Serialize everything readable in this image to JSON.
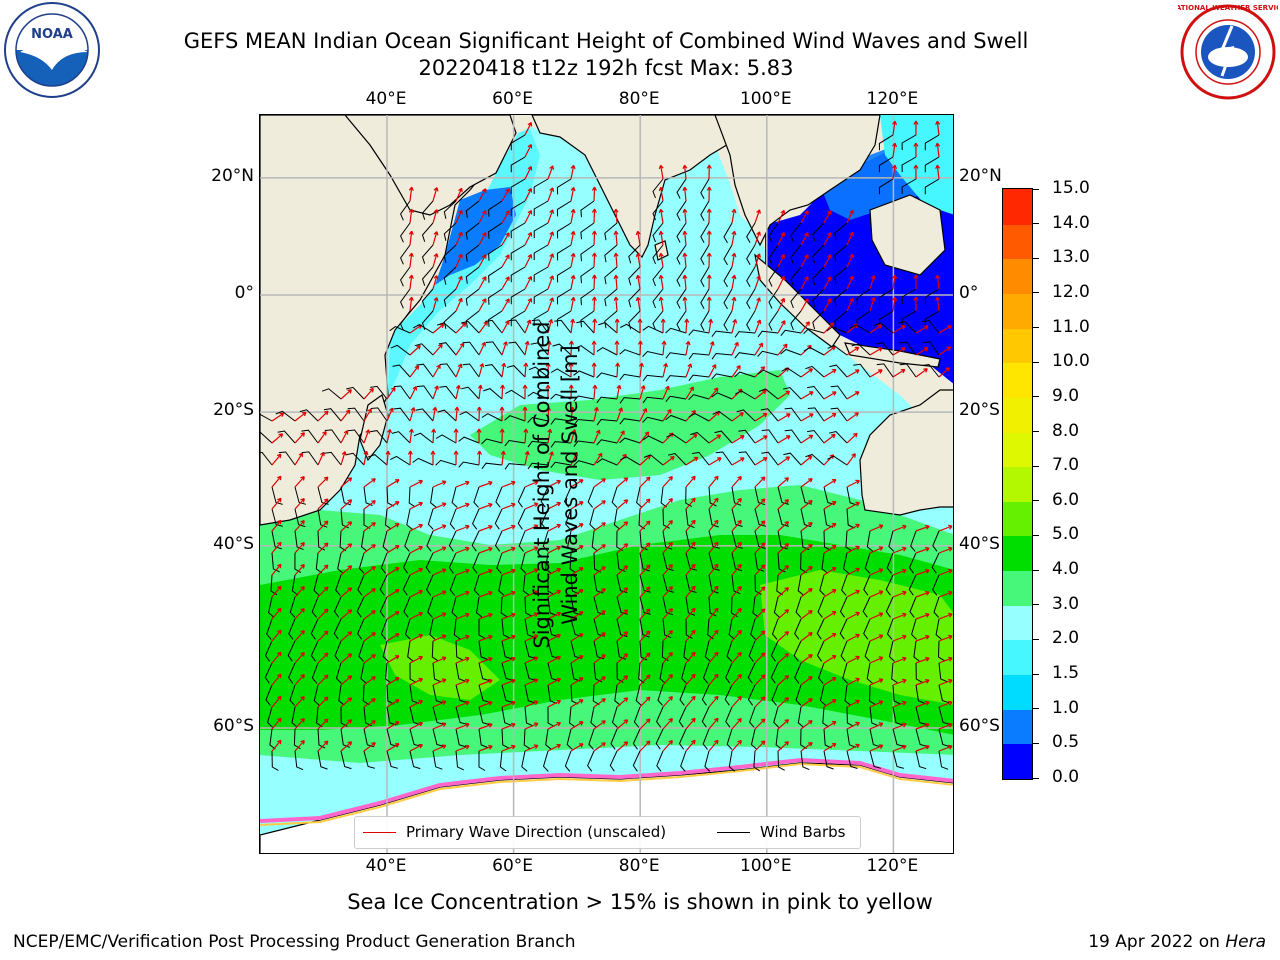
{
  "header": {
    "title_line1": "GEFS MEAN Indian Ocean Significant Height of Combined Wind Waves and Swell",
    "title_line2": "20220418 t12z 192h fcst   Max: 5.83"
  },
  "logos": {
    "noaa_text": "NOAA",
    "nws_ring_text": "NATIONAL WEATHER SERVICE"
  },
  "map": {
    "projection_x_ticks": [
      "40°E",
      "60°E",
      "80°E",
      "100°E",
      "120°E"
    ],
    "lon_values": [
      40,
      60,
      80,
      100,
      120
    ],
    "lat_values": [
      20,
      0,
      -20,
      -40,
      -60
    ],
    "left_lat_ticks": [
      "20°N",
      "0°",
      "20°S",
      "40°S",
      "60°S"
    ],
    "right_lat_ticks": [
      "20°N",
      "0°",
      "20°S",
      "40°S",
      "60°S"
    ],
    "colors": {
      "land": "#efecdc",
      "wave_direction": "#e00000",
      "wind_barb": "#000000",
      "grid": "#b8b8b8"
    }
  },
  "legend": {
    "wave_direction_label": "Primary Wave Direction (unscaled)",
    "wind_barb_label": "Wind Barbs"
  },
  "colorbar": {
    "label_line1": "Significant Height of Combined",
    "label_line2": "Wind Waves and Swell [m]",
    "ticks": [
      "15.0",
      "14.0",
      "13.0",
      "12.0",
      "11.0",
      "10.0",
      "9.0",
      "8.0",
      "7.0",
      "6.0",
      "5.0",
      "4.0",
      "3.0",
      "2.0",
      "1.5",
      "1.0",
      "0.5",
      "0.0"
    ],
    "colors": [
      "#0000ff",
      "#0a7cff",
      "#00dcff",
      "#46f7ff",
      "#96ffff",
      "#46f77a",
      "#00de00",
      "#64f000",
      "#b4f800",
      "#ddf800",
      "#f0f000",
      "#ffe600",
      "#ffc800",
      "#ffaa00",
      "#ff8c00",
      "#ff5a00",
      "#ff2800"
    ]
  },
  "footer": {
    "sea_ice_note": "Sea Ice Concentration > 15% is shown in pink to yellow",
    "credit": "NCEP/EMC/Verification Post Processing Product Generation Branch",
    "date_prefix": "19 Apr 2022 on ",
    "machine": "Hera"
  }
}
